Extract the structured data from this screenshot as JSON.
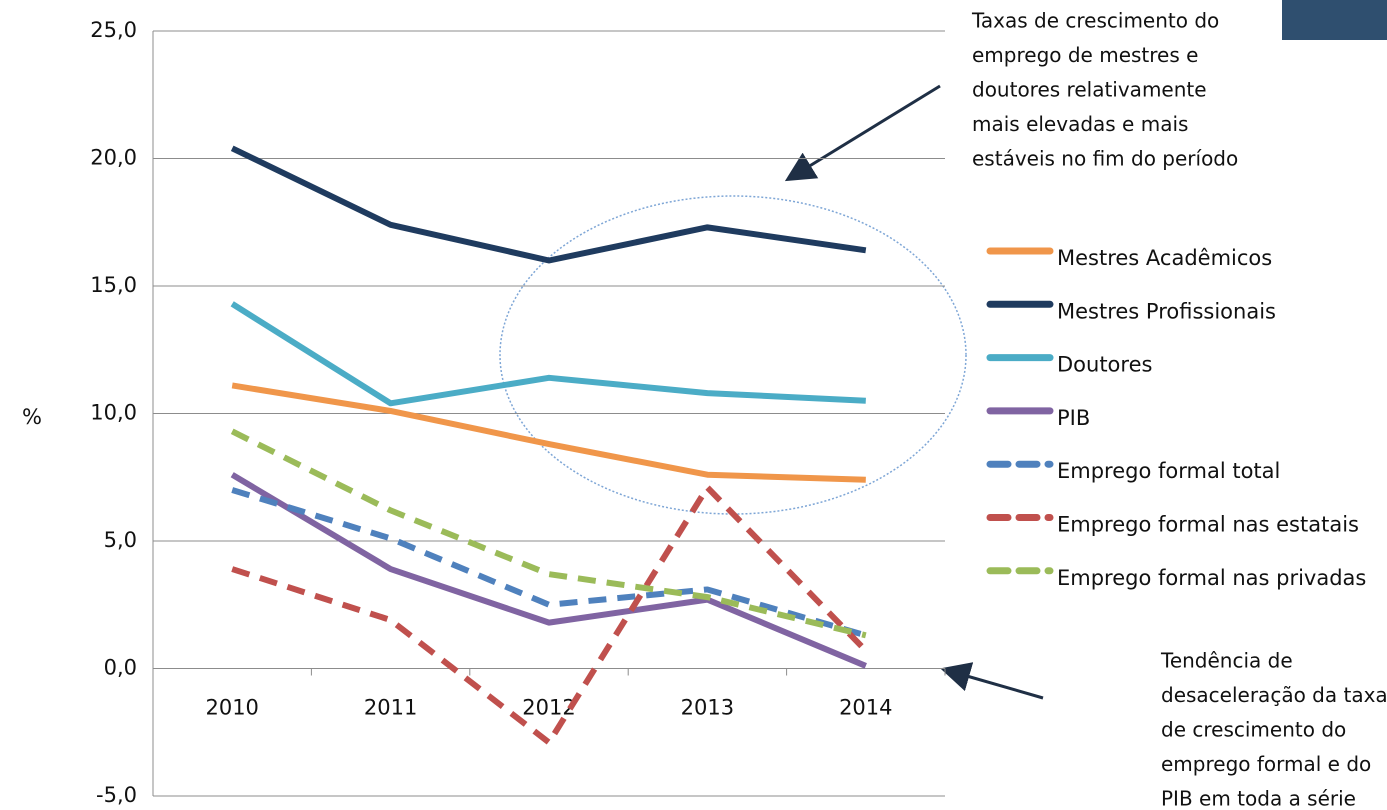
{
  "chart_data": {
    "type": "line",
    "y_label": "%",
    "categories": [
      "2010",
      "2011",
      "2012",
      "2013",
      "2014"
    ],
    "ylim": [
      -5,
      25
    ],
    "yticks": [
      {
        "value": -5,
        "label": "-5,0"
      },
      {
        "value": 0,
        "label": "0,0"
      },
      {
        "value": 5,
        "label": "5,0"
      },
      {
        "value": 10,
        "label": "10,0"
      },
      {
        "value": 15,
        "label": "15,0"
      },
      {
        "value": 20,
        "label": "20,0"
      },
      {
        "value": 25,
        "label": "25,0"
      }
    ],
    "grid": true,
    "legend": "right",
    "series": [
      {
        "name": "Mestres Acadêmicos",
        "color": "#f0964a",
        "dashed": false,
        "values": [
          11.1,
          10.1,
          8.8,
          7.6,
          7.4
        ]
      },
      {
        "name": "Mestres Profissionais",
        "color": "#1f3b5f",
        "dashed": false,
        "values": [
          20.4,
          17.4,
          16.0,
          17.3,
          16.4
        ]
      },
      {
        "name": "Doutores",
        "color": "#4bacc6",
        "dashed": false,
        "values": [
          14.3,
          10.4,
          11.4,
          10.8,
          10.5
        ]
      },
      {
        "name": "PIB",
        "color": "#8064a2",
        "dashed": false,
        "values": [
          7.6,
          3.9,
          1.8,
          2.7,
          0.1
        ]
      },
      {
        "name": "Emprego formal total",
        "color": "#4f81bd",
        "dashed": true,
        "values": [
          7.0,
          5.1,
          2.5,
          3.1,
          1.3
        ]
      },
      {
        "name": "Emprego formal nas estatais",
        "color": "#c0504d",
        "dashed": true,
        "values": [
          3.9,
          1.9,
          -2.9,
          7.1,
          0.7
        ]
      },
      {
        "name": "Emprego formal nas privadas",
        "color": "#9bbb59",
        "dashed": true,
        "values": [
          9.3,
          6.2,
          3.7,
          2.8,
          1.3
        ]
      }
    ],
    "annotations": [
      {
        "lines": [
          "Taxas de crescimento do",
          "emprego de mestres e",
          "doutores relativamente",
          "mais elevadas  e mais",
          "estáveis no fim do período"
        ]
      },
      {
        "lines": [
          "Tendência de",
          "desaceleração da taxa",
          "de crescimento do",
          "emprego formal e do",
          "PIB em toda a série"
        ]
      }
    ]
  }
}
